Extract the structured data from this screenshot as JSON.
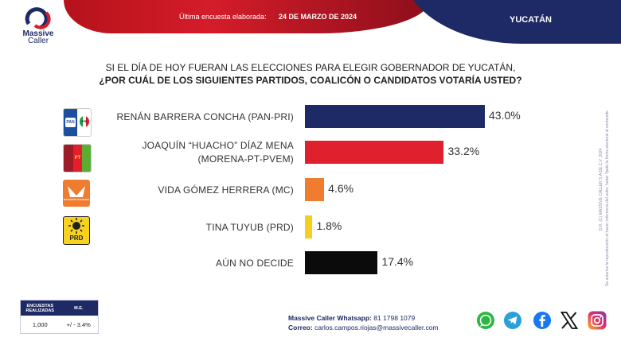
{
  "header": {
    "label": "Última encuesta elaborada:",
    "date": "24 DE MARZO DE 2024",
    "region": "YUCATÁN"
  },
  "brand": {
    "name": "Massive",
    "name2": "Caller"
  },
  "question": {
    "line1": "SI EL DÍA DE HOY FUERAN LAS ELECCIONES PARA ELEGIR GOBERNADOR DE YUCATÁN,",
    "line2": "¿POR CUÁL DE LOS SIGUIENTES PARTIDOS, COALICÓN  O CANDIDATOS VOTARÍA USTED?"
  },
  "chart_data": {
    "type": "bar",
    "orientation": "horizontal",
    "categories": [
      "RENÁN BARRERA CONCHA  (PAN-PRI)",
      "JOAQUÍN “HUACHO” DÍAZ MENA (MORENA-PT-PVEM)",
      "VIDA GÓMEZ HERRERA (MC)",
      "TINA TUYUB (PRD)",
      "AÚN NO DECIDE"
    ],
    "label_lines": [
      [
        "RENÁN BARRERA CONCHA  (PAN-PRI)"
      ],
      [
        "JOAQUÍN “HUACHO” DÍAZ MENA",
        "(MORENA-PT-PVEM)"
      ],
      [
        "VIDA GÓMEZ HERRERA (MC)"
      ],
      [
        "TINA TUYUB (PRD)"
      ],
      [
        "AÚN NO DECIDE"
      ]
    ],
    "values": [
      43.0,
      33.2,
      4.6,
      1.8,
      17.4
    ],
    "value_labels": [
      "43.0%",
      "33.2%",
      "4.6%",
      "1.8%",
      "17.4%"
    ],
    "colors": [
      "#1d2a66",
      "#e0202c",
      "#f07c30",
      "#f5cf1e",
      "#0b0b0b"
    ],
    "unit": "%"
  },
  "party_logos": {
    "pan": "PAN",
    "pri": "PRI",
    "pt": "PT",
    "mc": "MOVIMIENTO CIUDADANO",
    "prd": "PRD"
  },
  "survey": {
    "col1": "ENCUESTAS REALIZADAS",
    "col2": "M.E.",
    "count": "1,000",
    "margin": "+/ - 3.4%"
  },
  "contact": {
    "whatsapp_label": "Massive Caller Whatsapp:",
    "whatsapp_number": " 81 1798 1079",
    "email_label": "Correo:",
    "email": " carlos.campos.riojas@massivecaller.com"
  },
  "social": [
    "whatsapp-icon",
    "telegram-icon",
    "facebook-icon",
    "x-icon",
    "instagram-icon"
  ],
  "legal": {
    "line1": "D.R. (C) MASSIVE CALLER S.A DE C.V. 2024",
    "line2": "Se autoriza la reproducción al hacer referencia del autor, haber fijado la fecha electoral al contenido"
  }
}
